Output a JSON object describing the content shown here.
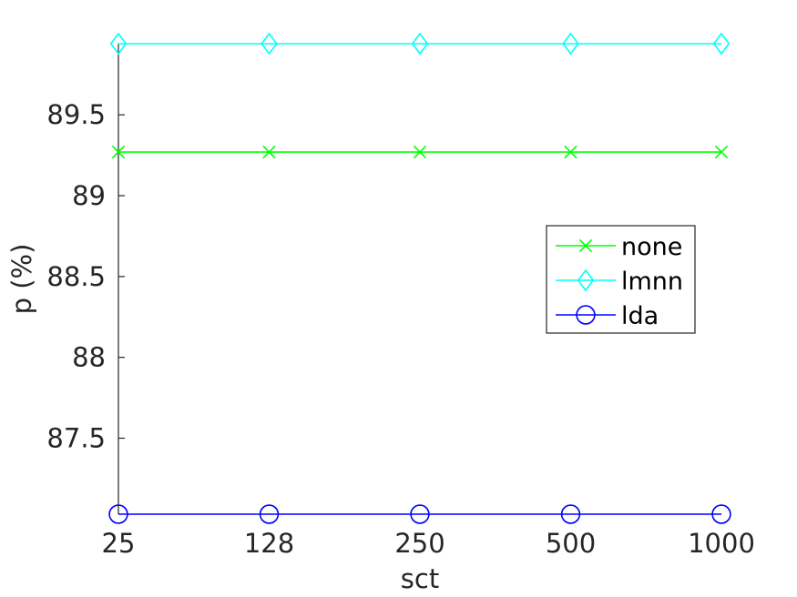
{
  "chart_data": {
    "type": "line",
    "title": "",
    "xlabel": "sct",
    "ylabel": "p (%)",
    "categories": [
      "25",
      "128",
      "250",
      "500",
      "1000"
    ],
    "ylim": [
      87.03,
      89.94
    ],
    "yticks": [
      87.5,
      88,
      88.5,
      89,
      89.5
    ],
    "ytick_labels": [
      "87.5",
      "88",
      "88.5",
      "89",
      "89.5"
    ],
    "grid": false,
    "legend_position": "right",
    "series": [
      {
        "name": "none",
        "values": [
          89.27,
          89.27,
          89.27,
          89.27,
          89.27
        ],
        "color": "#00ff00",
        "marker": "x"
      },
      {
        "name": "lmnn",
        "values": [
          89.94,
          89.94,
          89.94,
          89.94,
          89.94
        ],
        "color": "#00ffff",
        "marker": "diamond"
      },
      {
        "name": "lda",
        "values": [
          87.03,
          87.03,
          87.03,
          87.03,
          87.03
        ],
        "color": "#0000ff",
        "marker": "circle"
      }
    ]
  }
}
